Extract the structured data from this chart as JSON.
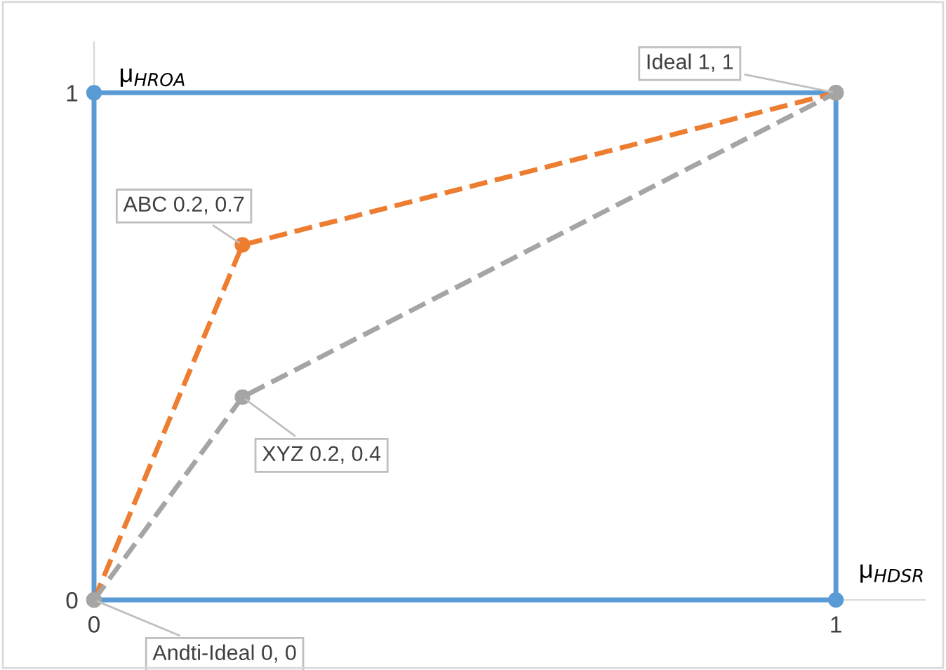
{
  "chart_data": {
    "type": "line",
    "xlabel": "μ$_{HDSR}$",
    "ylabel": "μ$_{HROA}$",
    "xlim": [
      0,
      1.12
    ],
    "ylim": [
      0,
      1.1
    ],
    "xticks": [
      0,
      1
    ],
    "yticks": [
      0,
      1
    ],
    "grid": false,
    "marker": "circle",
    "series": [
      {
        "color": "#5b9bd5",
        "line_style": "solid",
        "x": [
          0,
          1
        ],
        "values": [
          1,
          1
        ]
      },
      {
        "color": "#5b9bd5",
        "line_style": "solid",
        "x": [
          0,
          1
        ],
        "values": [
          0,
          0
        ]
      },
      {
        "color": "#5b9bd5",
        "line_style": "solid",
        "marker": "none",
        "x": [
          0,
          0
        ],
        "values": [
          0,
          1
        ]
      },
      {
        "color": "#5b9bd5",
        "line_style": "solid",
        "marker": "none",
        "x": [
          1,
          1
        ],
        "values": [
          0,
          1
        ]
      },
      {
        "color": "#ed7d31",
        "line_style": "dashed",
        "x": [
          0,
          0.2,
          1
        ],
        "values": [
          0,
          0.7,
          1
        ]
      },
      {
        "color": "#a5a5a5",
        "line_style": "dashed",
        "x": [
          0,
          0.2,
          1
        ],
        "values": [
          0,
          0.4,
          1
        ]
      }
    ],
    "annotations": [
      {
        "text": "Ideal 1, 1",
        "x": 1,
        "y": 1
      },
      {
        "text": "ABC 0.2, 0.7",
        "x": 0.2,
        "y": 0.7
      },
      {
        "text": "XYZ 0.2, 0.4",
        "x": 0.2,
        "y": 0.4
      },
      {
        "text": "Andti-Ideal 0, 0",
        "x": 0,
        "y": 0
      }
    ]
  }
}
